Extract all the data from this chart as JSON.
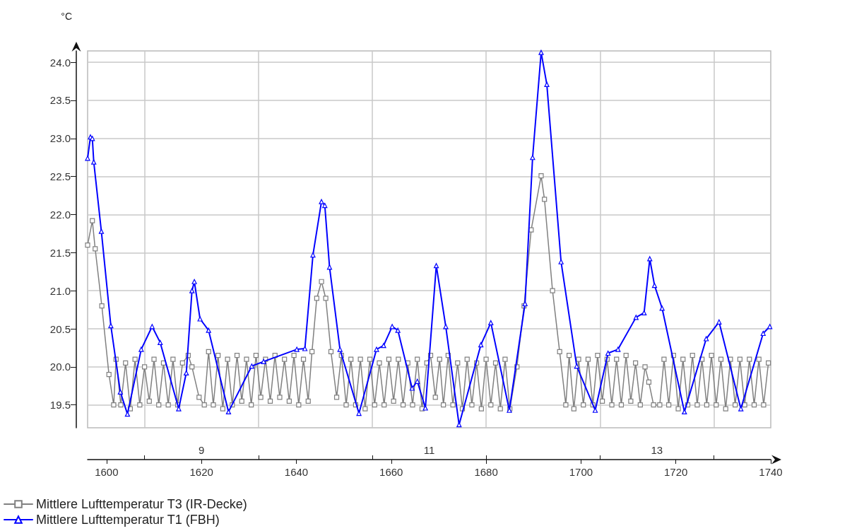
{
  "chart_data": {
    "type": "line",
    "ylabel": "°C",
    "xlim": [
      1596,
      1740
    ],
    "xticks": [
      1600,
      1620,
      1640,
      1660,
      1680,
      1700,
      1720,
      1740
    ],
    "x2lim": [
      8,
      14
    ],
    "x2ticks": [
      {
        "value": 8.5,
        "label": null
      },
      9,
      {
        "value": 9.5,
        "label": null
      },
      {
        "value": 10.5,
        "label": null
      },
      11,
      {
        "value": 11.5,
        "label": null
      },
      {
        "value": 12.5,
        "label": null
      },
      13,
      {
        "value": 13.5,
        "label": null
      }
    ],
    "ylim": [
      19.2,
      24.15
    ],
    "yticks": [
      19.5,
      {
        "value": 20,
        "label": "20.0"
      },
      20.5,
      {
        "value": 21,
        "label": "21.0"
      },
      21.5,
      {
        "value": 22,
        "label": "22.0"
      },
      22.5,
      {
        "value": 23,
        "label": "23.0"
      },
      23.5,
      {
        "value": 24,
        "label": "24.0"
      }
    ],
    "grid": true,
    "legend": "bottom left",
    "line_style": "solid",
    "series": [
      {
        "name": "Mittlere Lufttemperatur T3 (IR-Decke)",
        "color": "#808080",
        "marker": "square",
        "x": [
          1596.0,
          1597.0,
          1597.6,
          1599.0,
          1600.5,
          1601.5,
          1602,
          1603,
          1604,
          1605,
          1606,
          1607,
          1608,
          1609,
          1610,
          1611,
          1612,
          1613,
          1614,
          1615,
          1616,
          1617.2,
          1618,
          1619.5,
          1620.6,
          1621.5,
          1622.5,
          1623.5,
          1624.5,
          1625.5,
          1626.5,
          1627.5,
          1628.5,
          1629.5,
          1630.5,
          1631.5,
          1632.5,
          1633.5,
          1634.5,
          1635.5,
          1636.5,
          1637.5,
          1638.5,
          1639.5,
          1640.5,
          1641.5,
          1642.5,
          1643.3,
          1644.3,
          1645.3,
          1646.2,
          1647.3,
          1648.5,
          1649.5,
          1650.5,
          1651.5,
          1652.5,
          1653.5,
          1654.5,
          1655.5,
          1656.5,
          1657.5,
          1658.5,
          1659.5,
          1660.5,
          1661.5,
          1662.5,
          1663.5,
          1664.5,
          1665.5,
          1666.5,
          1667.5,
          1668.3,
          1669.3,
          1670.2,
          1671,
          1672,
          1673,
          1674,
          1675,
          1676,
          1677,
          1678,
          1679,
          1680,
          1681,
          1682,
          1683,
          1684,
          1685,
          1686.5,
          1688,
          1689.5,
          1691.6,
          1692.3,
          1694,
          1695.5,
          1696.8,
          1697.5,
          1698.5,
          1699.5,
          1700.5,
          1701.5,
          1702.5,
          1703.5,
          1704.5,
          1705.5,
          1706.5,
          1707.5,
          1708.5,
          1709.5,
          1710.5,
          1711.5,
          1712.5,
          1713.5,
          1714.3,
          1715.3,
          1716.6,
          1717.5,
          1718.5,
          1719.5,
          1720.5,
          1721.5,
          1722.5,
          1723.5,
          1724.5,
          1725.5,
          1726.5,
          1727.5,
          1728.5,
          1729.5,
          1730.5,
          1731.5,
          1732.5,
          1733.5,
          1734.5,
          1735.5,
          1736.5,
          1737.5,
          1738.5,
          1739.5
        ],
        "values": [
          21.6,
          21.92,
          21.55,
          20.8,
          19.9,
          19.5,
          20.1,
          19.5,
          20.05,
          19.45,
          20.1,
          19.5,
          20.0,
          19.55,
          20.1,
          19.5,
          20.05,
          19.5,
          20.1,
          19.5,
          20.05,
          20.15,
          20.0,
          19.6,
          19.5,
          20.2,
          19.5,
          20.15,
          19.45,
          20.1,
          19.5,
          20.15,
          19.55,
          20.1,
          19.5,
          20.15,
          19.6,
          20.1,
          19.55,
          20.15,
          19.6,
          20.1,
          19.55,
          20.15,
          19.5,
          20.1,
          19.55,
          20.2,
          20.9,
          21.12,
          20.9,
          20.2,
          19.6,
          20.15,
          19.5,
          20.1,
          19.5,
          20.1,
          19.45,
          20.1,
          19.5,
          20.05,
          19.5,
          20.1,
          19.55,
          20.1,
          19.5,
          20.05,
          19.5,
          20.1,
          19.45,
          20.05,
          20.15,
          19.6,
          20.1,
          19.5,
          20.15,
          19.5,
          20.05,
          19.45,
          20.1,
          19.5,
          20.05,
          19.45,
          20.1,
          19.5,
          20.05,
          19.45,
          20.1,
          19.45,
          20.0,
          20.8,
          21.8,
          22.51,
          22.2,
          21.0,
          20.2,
          19.5,
          20.15,
          19.45,
          20.1,
          19.5,
          20.1,
          19.5,
          20.15,
          19.55,
          20.1,
          19.5,
          20.1,
          19.5,
          20.15,
          19.55,
          20.05,
          19.5,
          20.0,
          19.8,
          19.5,
          19.5,
          20.1,
          19.5,
          20.15,
          19.45,
          20.1,
          19.5,
          20.15,
          19.5,
          20.1,
          19.5,
          20.15,
          19.5,
          20.1,
          19.45,
          20.1,
          19.5,
          20.1,
          19.5,
          20.1,
          19.5,
          20.1,
          19.5,
          20.05
        ]
      },
      {
        "name": "Mittlere Lufttemperatur T1 (FBH)",
        "color": "#0000ff",
        "marker": "triangle",
        "x": [
          1596.0,
          1596.6,
          1597.0,
          1597.3,
          1598.9,
          1600.9,
          1602.9,
          1604.4,
          1607.3,
          1609.6,
          1611.3,
          1615.2,
          1616.8,
          1618.0,
          1618.5,
          1619.7,
          1621.5,
          1625.7,
          1630.6,
          1633.1,
          1640.1,
          1641.8,
          1643.5,
          1645.3,
          1646.0,
          1647.0,
          1649.2,
          1653.2,
          1656.9,
          1658.4,
          1660.2,
          1661.4,
          1664.4,
          1665.5,
          1667.2,
          1669.5,
          1671.5,
          1674.3,
          1678.9,
          1681.0,
          1684.9,
          1688.2,
          1689.8,
          1691.6,
          1692.8,
          1695.8,
          1699.1,
          1703.0,
          1705.7,
          1707.8,
          1711.6,
          1713.3,
          1714.5,
          1715.5,
          1717.1,
          1721.8,
          1726.4,
          1729.1,
          1733.7,
          1738.4,
          1739.8
        ],
        "values": [
          22.74,
          23.02,
          23.0,
          22.69,
          21.78,
          20.54,
          19.67,
          19.38,
          20.23,
          20.53,
          20.32,
          19.45,
          19.92,
          21.0,
          21.12,
          20.63,
          20.48,
          19.41,
          20.01,
          20.07,
          20.23,
          20.24,
          21.47,
          22.17,
          22.12,
          21.31,
          20.23,
          19.39,
          20.23,
          20.28,
          20.53,
          20.48,
          19.72,
          19.81,
          19.46,
          21.33,
          20.53,
          19.24,
          20.29,
          20.58,
          19.43,
          20.83,
          22.75,
          24.13,
          23.71,
          21.38,
          20.01,
          19.43,
          20.18,
          20.23,
          20.65,
          20.71,
          21.42,
          21.07,
          20.77,
          19.41,
          20.37,
          20.59,
          19.45,
          20.44,
          20.53
        ]
      }
    ]
  }
}
